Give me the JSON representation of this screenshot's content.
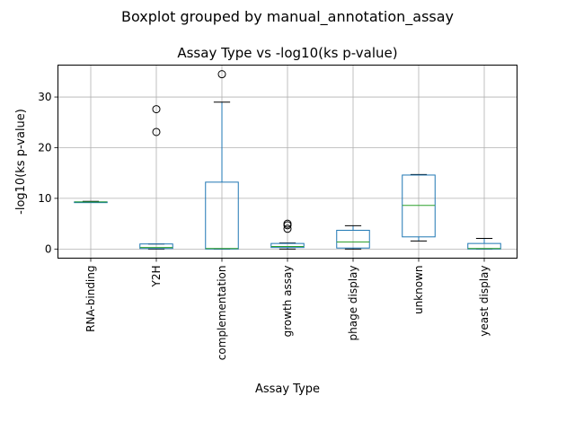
{
  "chart_data": {
    "type": "boxplot",
    "suptitle": "Boxplot grouped by manual_annotation_assay",
    "title": "Assay Type vs -log10(ks p-value)",
    "xlabel": "Assay Type",
    "ylabel": "-log10(ks p-value)",
    "ylim": [
      -1.8,
      36.3
    ],
    "yticks": [
      0,
      10,
      20,
      30
    ],
    "grid": true,
    "categories": [
      "RNA-binding",
      "Y2H",
      "complementation",
      "growth assay",
      "phage display",
      "unknown",
      "yeast display"
    ],
    "boxes": [
      {
        "whislo": 9.2,
        "q1": 9.2,
        "med": 9.3,
        "q3": 9.3,
        "whishi": 9.4,
        "fliers": []
      },
      {
        "whislo": 0.0,
        "q1": 0.1,
        "med": 0.3,
        "q3": 1.0,
        "whishi": 1.0,
        "fliers": [
          27.6,
          23.1
        ]
      },
      {
        "whislo": 0.0,
        "q1": 0.0,
        "med": 0.1,
        "q3": 13.2,
        "whishi": 29.0,
        "fliers": [
          34.5
        ]
      },
      {
        "whislo": 0.0,
        "q1": 0.3,
        "med": 0.5,
        "q3": 1.1,
        "whishi": 1.2,
        "fliers": [
          4.0,
          4.7,
          5.0
        ]
      },
      {
        "whislo": 0.0,
        "q1": 0.2,
        "med": 1.4,
        "q3": 3.7,
        "whishi": 4.6,
        "fliers": []
      },
      {
        "whislo": 1.6,
        "q1": 2.4,
        "med": 8.6,
        "q3": 14.6,
        "whishi": 14.7,
        "fliers": []
      },
      {
        "whislo": 0.0,
        "q1": 0.0,
        "med": 0.1,
        "q3": 1.1,
        "whishi": 2.1,
        "fliers": []
      }
    ],
    "colors": {
      "box": "#1f77b4",
      "median": "#2ca02c",
      "whisker": "#000000",
      "grid": "#b0b0b0"
    }
  }
}
